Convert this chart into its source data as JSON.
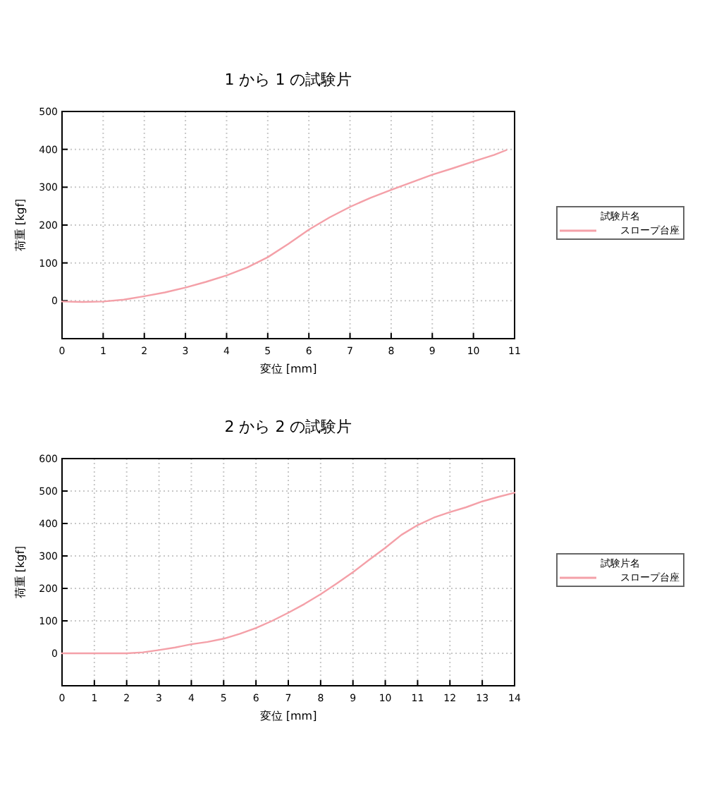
{
  "chart_data": [
    {
      "type": "line",
      "title": "1 から 1 の試験片",
      "xlabel": "変位 [mm]",
      "ylabel": "荷重 [kgf]",
      "legend_title": "試験片名",
      "legend": "right",
      "grid": true,
      "xlim": [
        0,
        11
      ],
      "xticks": [
        0,
        1,
        2,
        3,
        4,
        5,
        6,
        7,
        8,
        9,
        10,
        11
      ],
      "ylim": [
        -100,
        500
      ],
      "yticks": [
        {
          "value": -100,
          "label": null
        },
        0,
        100,
        200,
        300,
        400,
        500
      ],
      "series": [
        {
          "name": "スロープ台座",
          "color": "#f4a0a8",
          "x": [
            0,
            0.5,
            1,
            1.5,
            2,
            2.5,
            3,
            3.5,
            4,
            4.5,
            5,
            5.5,
            6,
            6.5,
            7,
            7.5,
            8,
            8.5,
            9,
            9.5,
            10,
            10.5,
            10.8
          ],
          "values": [
            -2,
            -3,
            -2,
            3,
            12,
            22,
            35,
            50,
            67,
            88,
            115,
            150,
            188,
            220,
            248,
            272,
            293,
            313,
            333,
            350,
            368,
            385,
            398
          ]
        }
      ]
    },
    {
      "type": "line",
      "title": "2 から 2 の試験片",
      "xlabel": "変位 [mm]",
      "ylabel": "荷重 [kgf]",
      "legend_title": "試験片名",
      "legend": "right",
      "grid": true,
      "xlim": [
        0,
        14
      ],
      "xticks": [
        0,
        1,
        2,
        3,
        4,
        5,
        6,
        7,
        8,
        9,
        10,
        11,
        12,
        13,
        14
      ],
      "ylim": [
        -100,
        600
      ],
      "yticks": [
        {
          "value": -100,
          "label": null
        },
        0,
        100,
        200,
        300,
        400,
        500,
        600
      ],
      "series": [
        {
          "name": "スロープ台座",
          "color": "#f4a0a8",
          "x": [
            0,
            1,
            2,
            2.5,
            3,
            3.5,
            4,
            4.5,
            5,
            5.5,
            6,
            6.5,
            7,
            7.5,
            8,
            8.5,
            9,
            9.5,
            10,
            10.5,
            11,
            11.5,
            12,
            12.5,
            13,
            13.5,
            14
          ],
          "values": [
            0,
            0,
            0,
            3,
            10,
            18,
            28,
            35,
            45,
            60,
            78,
            100,
            125,
            152,
            182,
            215,
            250,
            288,
            325,
            365,
            395,
            418,
            435,
            450,
            468,
            482,
            495
          ]
        }
      ]
    }
  ]
}
